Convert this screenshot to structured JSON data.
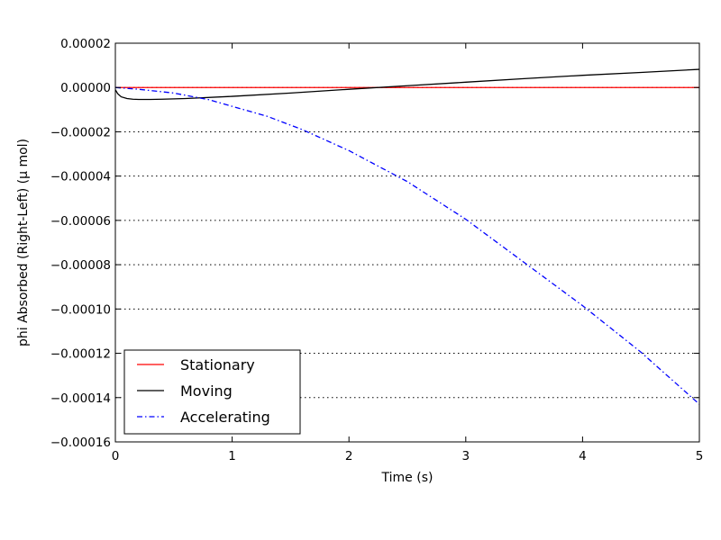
{
  "chart_data": {
    "type": "line",
    "xlabel": "Time (s)",
    "ylabel": "phi Absorbed (Right-Left) (μ mol)",
    "xlim": [
      0,
      5
    ],
    "ylim": [
      -0.00016,
      2e-05
    ],
    "x_ticks": [
      {
        "value": 0,
        "label": "0"
      },
      {
        "value": 1,
        "label": "1"
      },
      {
        "value": 2,
        "label": "2"
      },
      {
        "value": 3,
        "label": "3"
      },
      {
        "value": 4,
        "label": "4"
      },
      {
        "value": 5,
        "label": "5"
      }
    ],
    "y_ticks": [
      {
        "value": 2e-05,
        "label": "0.00002"
      },
      {
        "value": 0,
        "label": "0.00000"
      },
      {
        "value": -2e-05,
        "label": "−0.00002"
      },
      {
        "value": -4e-05,
        "label": "−0.00004"
      },
      {
        "value": -6e-05,
        "label": "−0.00006"
      },
      {
        "value": -8e-05,
        "label": "−0.00008"
      },
      {
        "value": -0.0001,
        "label": "−0.00010"
      },
      {
        "value": -0.00012,
        "label": "−0.00012"
      },
      {
        "value": -0.00014,
        "label": "−0.00014"
      },
      {
        "value": -0.00016,
        "label": "−0.00016"
      }
    ],
    "grid": "y-dotted",
    "legend_position": "lower-left",
    "series": [
      {
        "name": "Stationary",
        "color": "#ff0000",
        "style": "solid",
        "x": [
          0,
          5
        ],
        "y": [
          0,
          0
        ]
      },
      {
        "name": "Moving",
        "color": "#000000",
        "style": "solid",
        "x": [
          0,
          0.02,
          0.05,
          0.1,
          0.15,
          0.2,
          0.3,
          0.4,
          0.6,
          1.0,
          1.5,
          2.0,
          2.5,
          3.0,
          3.5,
          4.0,
          4.5,
          5.0
        ],
        "y": [
          -1e-06,
          -2.8e-06,
          -4.2e-06,
          -5e-06,
          -5.3e-06,
          -5.4e-06,
          -5.4e-06,
          -5.3e-06,
          -5e-06,
          -4e-06,
          -2.5e-06,
          -8e-07,
          8e-07,
          2.4e-06,
          4e-06,
          5.5e-06,
          6.8e-06,
          8.2e-06
        ]
      },
      {
        "name": "Accelerating",
        "color": "#0000ff",
        "style": "dashdot",
        "x": [
          0,
          0.2,
          0.5,
          0.8,
          1.0,
          1.3,
          1.6,
          2.0,
          2.5,
          3.0,
          3.5,
          4.0,
          4.5,
          5.0
        ],
        "y": [
          0,
          -8e-07,
          -2.5e-06,
          -5.5e-06,
          -8.5e-06,
          -1.3e-05,
          -1.9e-05,
          -2.85e-05,
          -4.25e-05,
          -5.95e-05,
          -7.9e-05,
          -9.85e-05,
          -0.0001195,
          -0.000143
        ]
      }
    ]
  }
}
